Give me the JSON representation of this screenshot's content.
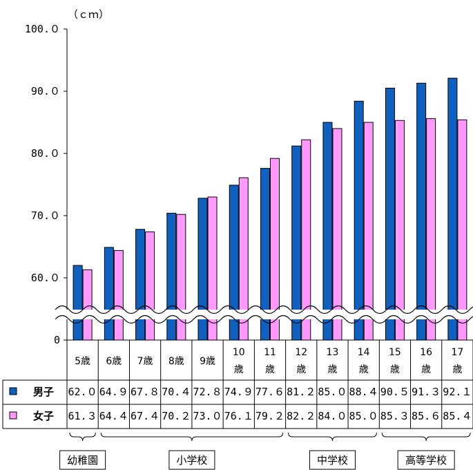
{
  "chart_data": {
    "type": "bar",
    "unit_label": "（ｃｍ）",
    "ylim": [
      0,
      100
    ],
    "axis_break": true,
    "y_ticks": [
      {
        "value": 100,
        "label": "100.０"
      },
      {
        "value": 90,
        "label": "90.０"
      },
      {
        "value": 80,
        "label": "80.０"
      },
      {
        "value": 70,
        "label": "70.０"
      },
      {
        "value": 60,
        "label": "60.０"
      },
      {
        "value": 0,
        "label": "0"
      }
    ],
    "categories": [
      {
        "line1": "5歳",
        "line2": ""
      },
      {
        "line1": "6歳",
        "line2": ""
      },
      {
        "line1": "7歳",
        "line2": ""
      },
      {
        "line1": "8歳",
        "line2": ""
      },
      {
        "line1": "9歳",
        "line2": ""
      },
      {
        "line1": "10",
        "line2": "歳"
      },
      {
        "line1": "11",
        "line2": "歳"
      },
      {
        "line1": "12",
        "line2": "歳"
      },
      {
        "line1": "13",
        "line2": "歳"
      },
      {
        "line1": "14",
        "line2": "歳"
      },
      {
        "line1": "15",
        "line2": "歳"
      },
      {
        "line1": "16",
        "line2": "歳"
      },
      {
        "line1": "17",
        "line2": "歳"
      }
    ],
    "series": [
      {
        "name": "男子",
        "color": "#1060C0",
        "values": [
          62.0,
          64.9,
          67.8,
          70.4,
          72.8,
          74.9,
          77.6,
          81.2,
          85.0,
          88.4,
          90.5,
          91.3,
          92.1
        ],
        "labels": [
          "62.０",
          "64.９",
          "67.８",
          "70.４",
          "72.８",
          "74.９",
          "77.６",
          "81.２",
          "85.０",
          "88.４",
          "90.５",
          "91.３",
          "92.１"
        ]
      },
      {
        "name": "女子",
        "color": "#FF99FF",
        "values": [
          61.3,
          64.4,
          67.4,
          70.2,
          73.0,
          76.1,
          79.2,
          82.2,
          84.0,
          85.0,
          85.3,
          85.6,
          85.4
        ],
        "labels": [
          "61.３",
          "64.４",
          "67.４",
          "70.２",
          "73.０",
          "76.１",
          "79.２",
          "82.２",
          "84.０",
          "85.０",
          "85.３",
          "85.６",
          "85.４"
        ]
      }
    ],
    "groups": [
      {
        "label": "幼稚園",
        "from": 0,
        "to": 0
      },
      {
        "label": "小学校",
        "from": 1,
        "to": 6
      },
      {
        "label": "中学校",
        "from": 7,
        "to": 9
      },
      {
        "label": "高等学校",
        "from": 10,
        "to": 12
      }
    ]
  }
}
